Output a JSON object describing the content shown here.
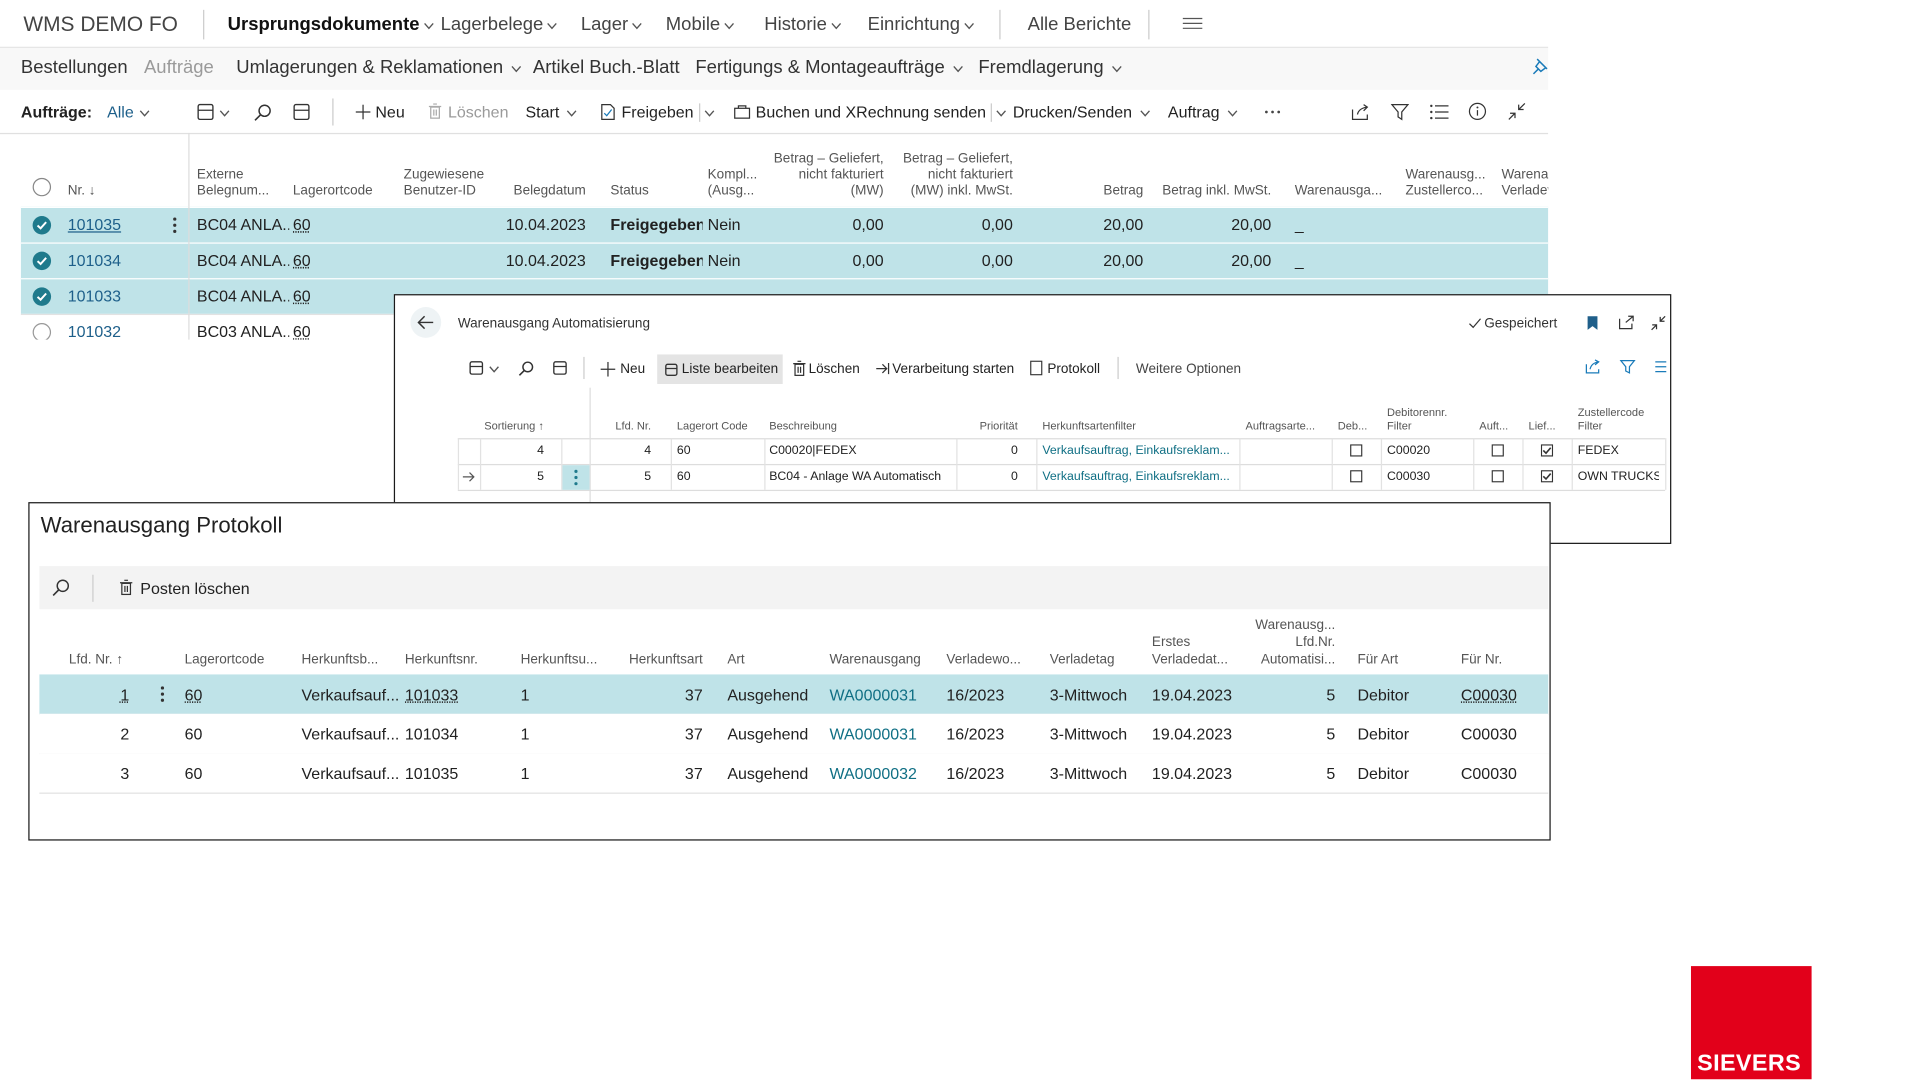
{
  "nav": {
    "app_name": "WMS DEMO FO",
    "menu": [
      "Ursprungsdokumente",
      "Lagerbelege",
      "Lager",
      "Mobile",
      "Historie",
      "Einrichtung"
    ],
    "reports": "Alle Berichte"
  },
  "subnav": [
    "Bestellungen",
    "Aufträge",
    "Umlagerungen & Reklamationen",
    "Artikel Buch.-Blatt",
    "Fertigungs & Montageaufträge",
    "Fremdlagerung"
  ],
  "toolbar": {
    "filter_label": "Aufträge:",
    "filter_value": "Alle",
    "actions": [
      "Neu",
      "Löschen",
      "Start",
      "Freigeben",
      "Buchen und XRechnung senden",
      "Drucken/Senden",
      "Auftrag"
    ]
  },
  "orders_table": {
    "headers": [
      "Nr. ↓",
      "Externe\nBelegnum...",
      "Lagerortcode",
      "Zugewiesene\nBenutzer-ID",
      "Belegdatum",
      "Status",
      "Kompl...\n(Ausg...",
      "Betrag – Geliefert,\nnicht fakturiert\n(MW)",
      "Betrag – Geliefert,\nnicht fakturiert\n(MW) inkl. MwSt.",
      "Betrag",
      "Betrag inkl. MwSt.",
      "Warenausga...",
      "Warenausg...\nZustellerco...",
      "Warenau\nVerladev"
    ],
    "rows": [
      [
        "101035",
        "BC04 ANLA...",
        "60",
        null,
        "10.04.2023",
        "Freigegeben",
        "Nein",
        "0,00",
        "0,00",
        "20,00",
        "20,00",
        "_",
        null,
        null
      ],
      [
        "101034",
        "BC04 ANLA...",
        "60",
        null,
        "10.04.2023",
        "Freigegeben",
        "Nein",
        "0,00",
        "0,00",
        "20,00",
        "20,00",
        "_",
        null,
        null
      ],
      [
        "101033",
        "BC04 ANLA...",
        "60",
        null,
        null,
        null,
        null,
        null,
        null,
        null,
        null,
        null,
        null,
        null
      ],
      [
        "101032",
        "BC03 ANLA...",
        "60",
        null,
        null,
        null,
        null,
        null,
        null,
        null,
        null,
        null,
        null,
        null
      ]
    ]
  },
  "automation_dialog": {
    "title": "Warenausgang Automatisierung",
    "status": "Gespeichert",
    "actions": [
      "Neu",
      "Liste bearbeiten",
      "Löschen",
      "Verarbeitung starten",
      "Protokoll",
      "Weitere Optionen"
    ],
    "headers": [
      "Sortierung ↑",
      "Lfd. Nr.",
      "Lagerort Code",
      "Beschreibung",
      "Priorität",
      "Herkunftsartenfilter",
      "Auftragsarte...",
      "Deb...",
      "Debitorennr.\nFilter",
      "Auft...",
      "Lief...",
      "Zustellercode\nFilter"
    ],
    "rows": [
      [
        4,
        4,
        "60",
        "C00020|FEDEX",
        0,
        "Verkaufsauftrag, Einkaufsreklam...",
        null,
        false,
        "C00020",
        false,
        true,
        "FEDEX"
      ],
      [
        5,
        5,
        "60",
        "BC04 - Anlage WA Automatisch",
        0,
        "Verkaufsauftrag, Einkaufsreklam...",
        null,
        false,
        "C00030",
        false,
        true,
        "OWN TRUCKS"
      ]
    ]
  },
  "protocol_dialog": {
    "title": "Warenausgang Protokoll",
    "action": "Posten löschen",
    "headers": [
      "Lfd. Nr. ↑",
      "Lagerortcode",
      "Herkunftsb...",
      "Herkunftsnr.",
      "Herkunftsu...",
      "Herkunftsart",
      "Art",
      "Warenausgang",
      "Verladewo...",
      "Verladetag",
      "Erstes\nVerladedat...",
      "Warenausg...\nLfd.Nr.\nAutomatisi...",
      "Für Art",
      "Für Nr."
    ],
    "rows": [
      [
        1,
        "60",
        "Verkaufsauf...",
        "101033",
        "1",
        37,
        "Ausgehend",
        "WA0000031",
        "16/2023",
        "3-Mittwoch",
        "19.04.2023",
        5,
        "Debitor",
        "C00030"
      ],
      [
        2,
        "60",
        "Verkaufsauf...",
        "101034",
        "1",
        37,
        "Ausgehend",
        "WA0000031",
        "16/2023",
        "3-Mittwoch",
        "19.04.2023",
        5,
        "Debitor",
        "C00030"
      ],
      [
        3,
        "60",
        "Verkaufsauf...",
        "101035",
        "1",
        37,
        "Ausgehend",
        "WA0000032",
        "16/2023",
        "3-Mittwoch",
        "19.04.2023",
        5,
        "Debitor",
        "C00030"
      ]
    ]
  },
  "logo": "SIEVERS"
}
